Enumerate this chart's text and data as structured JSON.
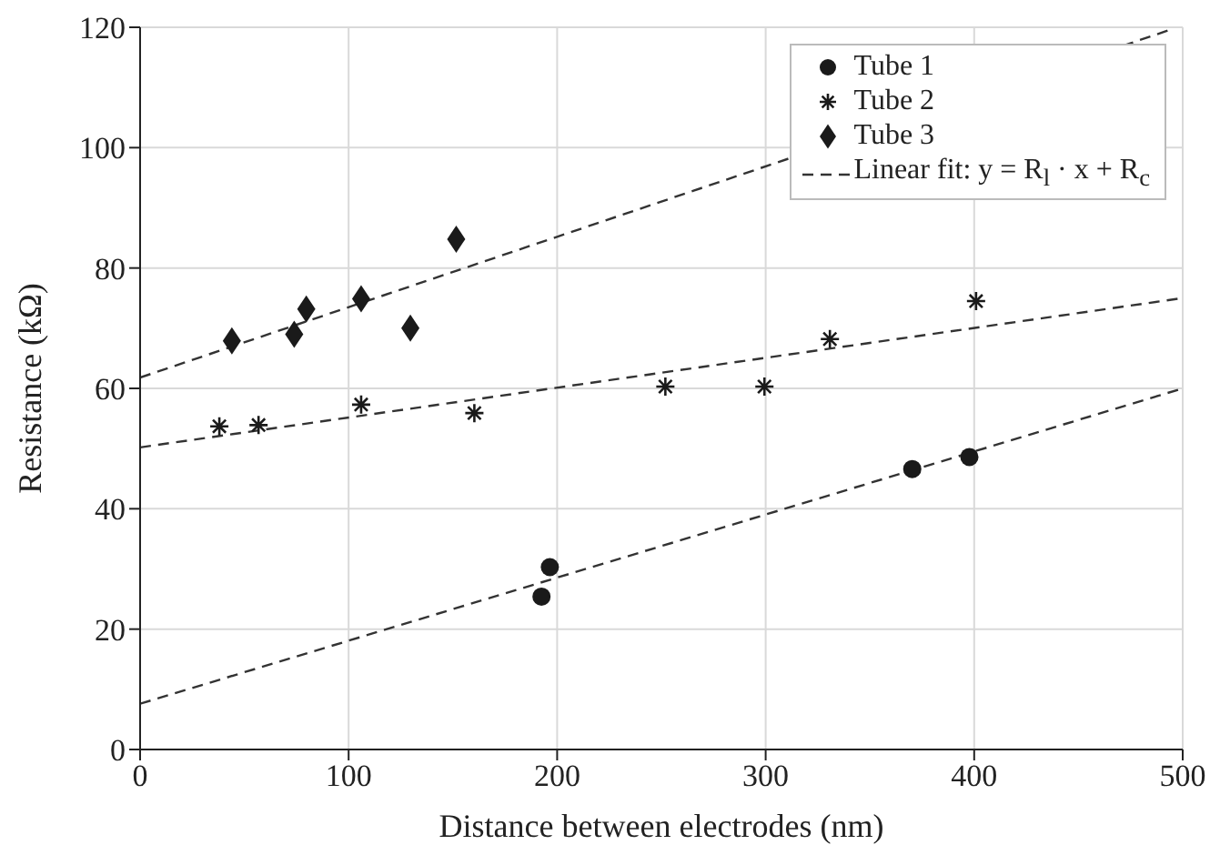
{
  "chart_data": {
    "type": "scatter",
    "xlabel": "Distance between electrodes (nm)",
    "ylabel": "Resistance (kΩ)",
    "xlim": [
      0,
      500
    ],
    "xticks": [
      0,
      100,
      200,
      300,
      400,
      500
    ],
    "ylim": [
      0,
      120
    ],
    "yticks": [
      0,
      20,
      40,
      60,
      80,
      100,
      120
    ],
    "grid": true,
    "legend": "top right",
    "series": [
      {
        "name": "Tube 1",
        "marker": "circle",
        "color": "#1a1a1a",
        "x": [
          192.5,
          196.5,
          370.3,
          397.7
        ],
        "values": [
          25.4,
          30.3,
          46.6,
          48.6
        ]
      },
      {
        "name": "Tube 2",
        "marker": "cross",
        "color": "#1a1a1a",
        "x": [
          38,
          56.8,
          106,
          160.3,
          251.9,
          299.4,
          330.8,
          400.9
        ],
        "values": [
          53.7,
          53.9,
          57.3,
          55.9,
          60.3,
          60.3,
          68.2,
          74.5
        ]
      },
      {
        "name": "Tube 3",
        "marker": "diamond",
        "color": "#1a1a1a",
        "x": [
          44,
          73.9,
          79.7,
          106,
          129.6,
          151.6
        ],
        "values": [
          67.9,
          69.0,
          73.2,
          74.9,
          70.0,
          84.8
        ]
      },
      {
        "name": "Linear fit: y = R$_{l}$ · x + R$_{c}$",
        "type": "line",
        "line_style": "dashed",
        "color": "#333333",
        "x": [
          0,
          500
        ],
        "values": [
          7.6,
          60
        ]
      },
      {
        "type": "line",
        "line_style": "dashed",
        "color": "#333333",
        "x": [
          0,
          500
        ],
        "values": [
          50.2,
          75.0
        ]
      },
      {
        "type": "line",
        "line_style": "dashed",
        "color": "#333333",
        "x": [
          0,
          495
        ],
        "values": [
          61.8,
          119.7
        ]
      }
    ]
  }
}
